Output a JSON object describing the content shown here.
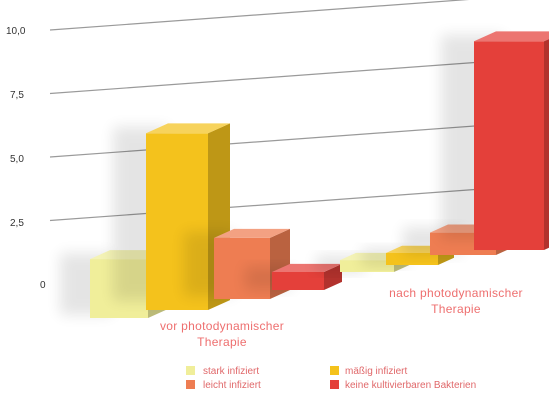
{
  "chart_data": {
    "type": "bar",
    "ylim": [
      0,
      10
    ],
    "yticks": [
      "10,0",
      "7,5",
      "5,0",
      "2,5",
      "0"
    ],
    "groups": [
      {
        "label_lines": [
          "vor photodynamischer",
          "Therapie"
        ],
        "values": [
          1.6,
          6.2,
          2.6,
          0.9
        ]
      },
      {
        "label_lines": [
          "nach photodynamischer",
          "Therapie"
        ],
        "values": [
          0.7,
          0.8,
          1.4,
          9.8
        ]
      }
    ],
    "series": [
      {
        "name": "stark infiziert",
        "color": "#f0ee9a"
      },
      {
        "name": "mäßig infiziert",
        "color": "#f4c21c"
      },
      {
        "name": "leicht infiziert",
        "color": "#ee7d52"
      },
      {
        "name": "keine kultivierbaren Bakterien",
        "color": "#e4403a"
      }
    ]
  }
}
